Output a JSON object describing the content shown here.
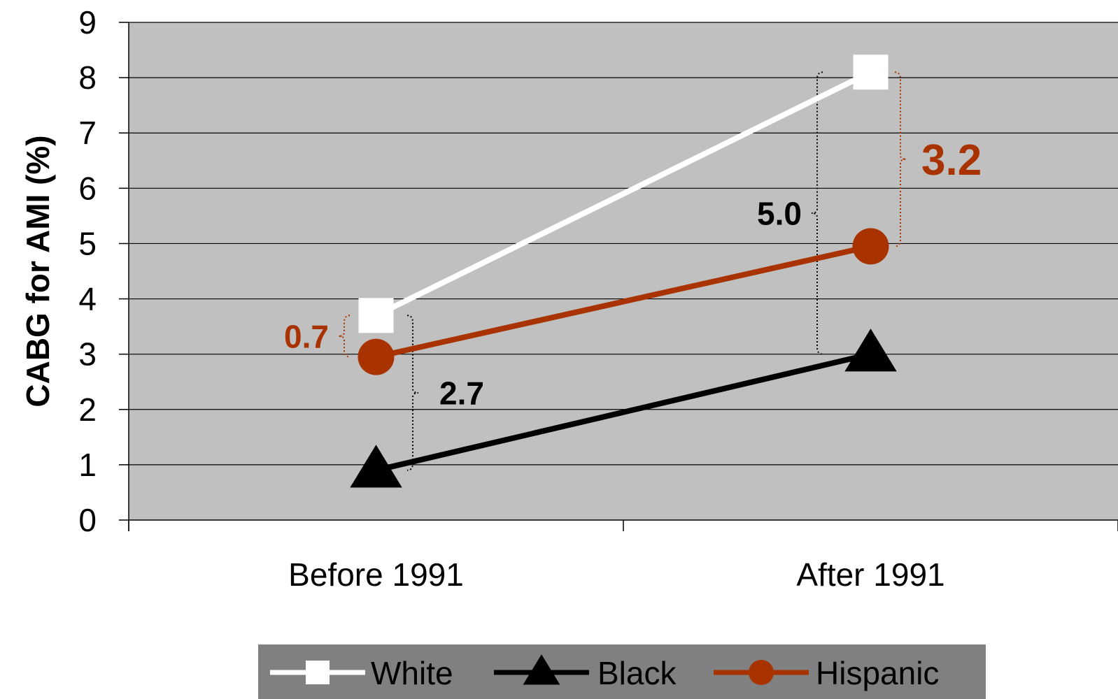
{
  "chart_data": {
    "type": "line",
    "categories": [
      "Before 1991",
      "After 1991"
    ],
    "series": [
      {
        "name": "White",
        "values": [
          3.7,
          8.1
        ],
        "color": "#ffffff",
        "marker": "square"
      },
      {
        "name": "Black",
        "values": [
          0.9,
          3.0
        ],
        "color": "#000000",
        "marker": "triangle"
      },
      {
        "name": "Hispanic",
        "values": [
          2.95,
          4.95
        ],
        "color": "#a83300",
        "marker": "circle"
      }
    ],
    "ylabel": "CABG for AMI (%)",
    "ylim": [
      0,
      9
    ],
    "yticks": [
      "0",
      "1",
      "2",
      "3",
      "4",
      "5",
      "6",
      "7",
      "8",
      "9"
    ],
    "grid": true,
    "plot_background": "#c0c0c0",
    "legend": {
      "position": "bottom",
      "background": "#808080"
    },
    "annotations": [
      {
        "text": "0.7",
        "color": "#a83300",
        "category": "Before 1991",
        "from": 2.95,
        "to": 3.7
      },
      {
        "text": "2.7",
        "color": "#000000",
        "category": "Before 1991",
        "from": 0.9,
        "to": 3.7
      },
      {
        "text": "5.0",
        "color": "#000000",
        "category": "After 1991",
        "from": 3.0,
        "to": 8.1
      },
      {
        "text": "3.2",
        "color": "#a83300",
        "category": "After 1991",
        "from": 4.95,
        "to": 8.1
      }
    ]
  }
}
